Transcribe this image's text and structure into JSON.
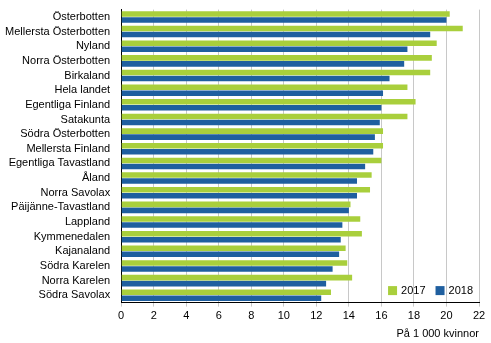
{
  "chart_data": {
    "type": "bar",
    "orientation": "horizontal",
    "categories": [
      "Österbotten",
      "Mellersta Österbotten",
      "Nyland",
      "Norra Österbotten",
      "Birkaland",
      "Hela landet",
      "Egentliga Finland",
      "Satakunta",
      "Södra Österbotten",
      "Mellersta Finland",
      "Egentliga Tavastland",
      "Åland",
      "Norra Savolax",
      "Päijänne-Tavastland",
      "Lappland",
      "Kymmenedalen",
      "Kajanaland",
      "Södra Karelen",
      "Norra Karelen",
      "Södra Savolax"
    ],
    "series": [
      {
        "name": "2017",
        "color": "#a9cf3c",
        "values": [
          20.2,
          21.0,
          19.4,
          19.1,
          19.0,
          17.6,
          18.1,
          17.6,
          16.1,
          16.1,
          16.0,
          15.4,
          15.3,
          14.1,
          14.7,
          14.8,
          13.8,
          13.9,
          14.2,
          12.9
        ]
      },
      {
        "name": "2018",
        "color": "#1f5f9f",
        "values": [
          20.0,
          19.0,
          17.6,
          17.4,
          16.5,
          16.1,
          16.0,
          15.9,
          15.6,
          15.5,
          15.0,
          14.5,
          14.5,
          14.0,
          13.6,
          13.5,
          13.4,
          13.0,
          12.6,
          12.3
        ]
      }
    ],
    "x_label": "På 1 000 kvinnor",
    "xlim": [
      0,
      22
    ],
    "xticks": [
      0,
      2,
      4,
      6,
      8,
      10,
      12,
      14,
      16,
      18,
      20,
      22
    ],
    "grid": true,
    "legend": "lower right"
  }
}
